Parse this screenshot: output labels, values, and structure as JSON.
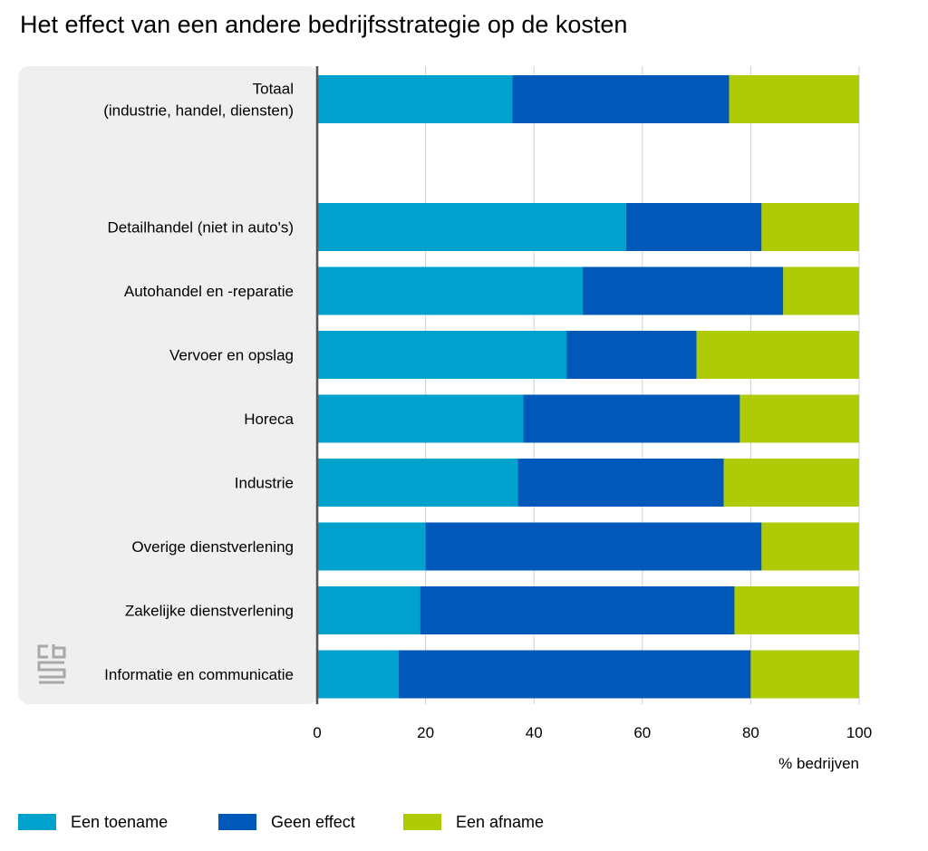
{
  "colors": {
    "toename": "#00a1cd",
    "geen_effect": "#0058b8",
    "afname": "#afcb05",
    "panel_bg": "#efefef",
    "grid": "#d0d0d0",
    "axis": "#555555",
    "logo": "#a8a8a8"
  },
  "chart_data": {
    "type": "bar",
    "orientation": "horizontal",
    "stacked": true,
    "title": "Het effect van een andere bedrijfsstrategie op de kosten",
    "xlabel": "% bedrijven",
    "ylabel": "",
    "xlim": [
      0,
      100
    ],
    "xticks": [
      0,
      20,
      40,
      60,
      80,
      100
    ],
    "grid": true,
    "legend_position": "bottom",
    "categories": [
      [
        "Totaal",
        "(industrie, handel, diensten)"
      ],
      [],
      [
        "Detailhandel (niet in auto's)"
      ],
      [
        "Autohandel en -reparatie"
      ],
      [
        "Vervoer en opslag"
      ],
      [
        "Horeca"
      ],
      [
        "Industrie"
      ],
      [
        "Overige dienstverlening"
      ],
      [
        "Zakelijke dienstverlening"
      ],
      [
        "Informatie en communicatie"
      ]
    ],
    "series": [
      {
        "name": "Een toename",
        "color": "#00a1cd",
        "values": [
          36,
          null,
          57,
          49,
          46,
          38,
          37,
          20,
          19,
          15
        ]
      },
      {
        "name": "Geen effect",
        "color": "#0058b8",
        "values": [
          40,
          null,
          25,
          37,
          24,
          40,
          38,
          62,
          58,
          65
        ]
      },
      {
        "name": "Een afname",
        "color": "#afcb05",
        "values": [
          24,
          null,
          18,
          14,
          30,
          22,
          25,
          18,
          23,
          20
        ]
      }
    ]
  }
}
